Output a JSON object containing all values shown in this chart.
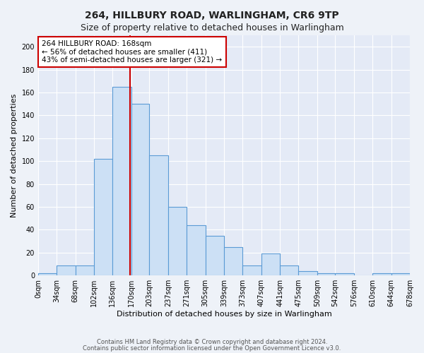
{
  "title1": "264, HILLBURY ROAD, WARLINGHAM, CR6 9TP",
  "title2": "Size of property relative to detached houses in Warlingham",
  "xlabel": "Distribution of detached houses by size in Warlingham",
  "ylabel": "Number of detached properties",
  "bin_edges": [
    0,
    34,
    68,
    102,
    136,
    170,
    203,
    237,
    271,
    305,
    339,
    373,
    407,
    441,
    475,
    509,
    542,
    576,
    610,
    644,
    678
  ],
  "bin_labels": [
    "0sqm",
    "34sqm",
    "68sqm",
    "102sqm",
    "136sqm",
    "170sqm",
    "203sqm",
    "237sqm",
    "271sqm",
    "305sqm",
    "339sqm",
    "373sqm",
    "407sqm",
    "441sqm",
    "475sqm",
    "509sqm",
    "542sqm",
    "576sqm",
    "610sqm",
    "644sqm",
    "678sqm"
  ],
  "counts": [
    2,
    9,
    9,
    102,
    165,
    150,
    105,
    60,
    44,
    35,
    25,
    9,
    19,
    9,
    4,
    2,
    2,
    0,
    2,
    2
  ],
  "bar_facecolor": "#cce0f5",
  "bar_edgecolor": "#5b9bd5",
  "property_size": 168,
  "vline_color": "#cc0000",
  "annotation_line1": "264 HILLBURY ROAD: 168sqm",
  "annotation_line2": "← 56% of detached houses are smaller (411)",
  "annotation_line3": "43% of semi-detached houses are larger (321) →",
  "annotation_box_edgecolor": "#cc0000",
  "annotation_box_facecolor": "white",
  "ylim": [
    0,
    210
  ],
  "yticks": [
    0,
    20,
    40,
    60,
    80,
    100,
    120,
    140,
    160,
    180,
    200
  ],
  "footer1": "Contains HM Land Registry data © Crown copyright and database right 2024.",
  "footer2": "Contains public sector information licensed under the Open Government Licence v3.0.",
  "bg_color": "#eef2f8",
  "plot_bg_color": "#e4eaf6",
  "grid_color": "#ffffff",
  "title1_fontsize": 10,
  "title2_fontsize": 9,
  "ylabel_fontsize": 8,
  "xlabel_fontsize": 8,
  "tick_fontsize": 7,
  "footer_fontsize": 6
}
